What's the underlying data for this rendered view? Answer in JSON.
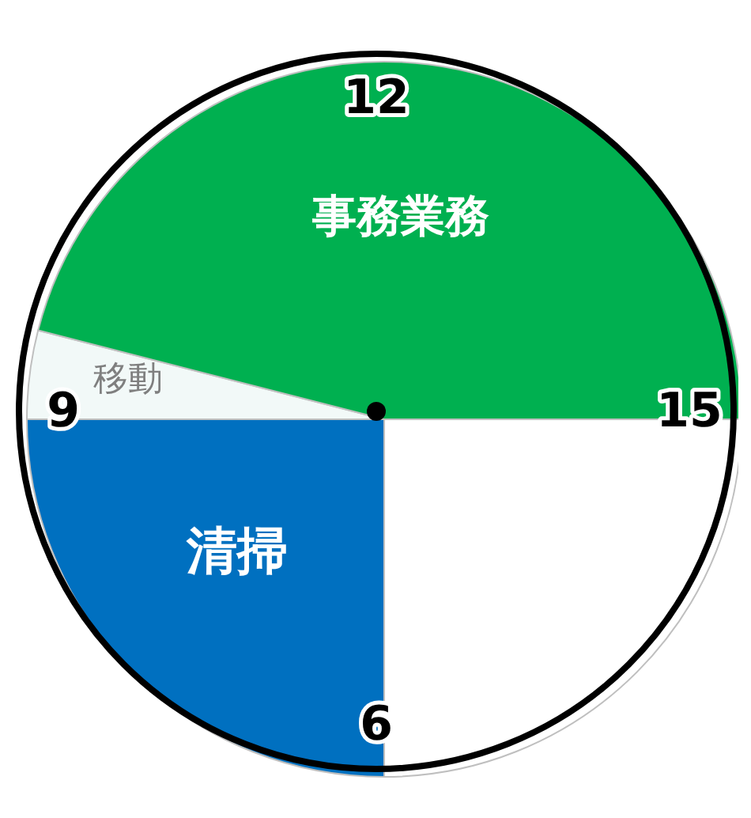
{
  "chart_data": {
    "type": "pie",
    "categories": [
      null,
      "清掃",
      "移動",
      "事務業務"
    ],
    "values": [
      25,
      25,
      4,
      46
    ],
    "colors": [
      "#ffffff",
      "#0070c0",
      "#f2f9f8",
      "#00b050"
    ],
    "annotations": [
      "15",
      "6",
      "9",
      "12"
    ]
  }
}
